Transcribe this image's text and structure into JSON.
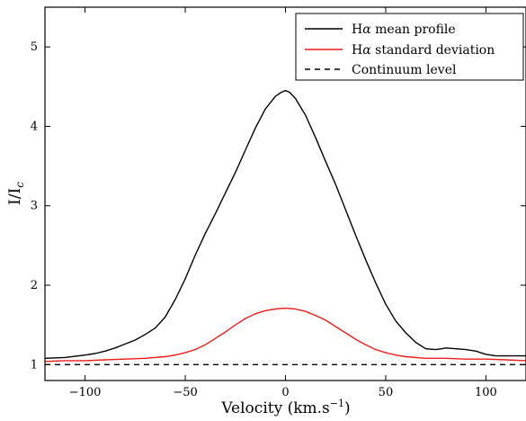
{
  "chart_data": {
    "type": "line",
    "title": "",
    "xlabel": "Velocity (km.s",
    "xlabel_sup": "−1",
    "xlabel_close": ")",
    "ylabel_main": "I/I",
    "ylabel_sub": "c",
    "xlim": [
      -120,
      120
    ],
    "ylim": [
      0.8,
      5.5
    ],
    "xticks": [
      -100,
      -50,
      0,
      50,
      100
    ],
    "xtick_labels": [
      "−100",
      "−50",
      "0",
      "50",
      "100"
    ],
    "yticks": [
      1,
      2,
      3,
      4,
      5
    ],
    "ytick_labels": [
      "1",
      "2",
      "3",
      "4",
      "5"
    ],
    "grid": false,
    "legend_position": "top-right",
    "series": [
      {
        "name_prefix": "H",
        "name_greek": "α",
        "name_suffix": " mean profile",
        "color": "#000000",
        "style": "solid",
        "x": [
          -120,
          -110,
          -100,
          -95,
          -90,
          -85,
          -80,
          -75,
          -70,
          -65,
          -60,
          -55,
          -50,
          -45,
          -40,
          -35,
          -30,
          -25,
          -20,
          -15,
          -10,
          -5,
          -2,
          0,
          2,
          5,
          10,
          15,
          20,
          25,
          30,
          35,
          40,
          45,
          50,
          55,
          60,
          65,
          70,
          75,
          78,
          80,
          85,
          90,
          95,
          100,
          105,
          110,
          115,
          120
        ],
        "y": [
          1.08,
          1.09,
          1.12,
          1.14,
          1.17,
          1.21,
          1.26,
          1.31,
          1.38,
          1.46,
          1.6,
          1.82,
          2.08,
          2.38,
          2.65,
          2.9,
          3.16,
          3.42,
          3.7,
          3.98,
          4.22,
          4.38,
          4.43,
          4.45,
          4.43,
          4.35,
          4.14,
          3.86,
          3.56,
          3.27,
          2.95,
          2.63,
          2.32,
          2.03,
          1.76,
          1.55,
          1.4,
          1.28,
          1.2,
          1.19,
          1.2,
          1.21,
          1.2,
          1.19,
          1.17,
          1.13,
          1.11,
          1.11,
          1.11,
          1.11
        ]
      },
      {
        "name_prefix": "H",
        "name_greek": "α",
        "name_suffix": " standard deviation",
        "color": "#ee1c1c",
        "style": "solid",
        "x": [
          -120,
          -110,
          -100,
          -90,
          -80,
          -70,
          -60,
          -55,
          -50,
          -45,
          -40,
          -35,
          -30,
          -25,
          -20,
          -15,
          -10,
          -5,
          0,
          5,
          10,
          15,
          20,
          25,
          30,
          35,
          40,
          45,
          50,
          55,
          60,
          70,
          80,
          90,
          100,
          110,
          120
        ],
        "y": [
          1.04,
          1.05,
          1.05,
          1.06,
          1.07,
          1.08,
          1.1,
          1.12,
          1.15,
          1.19,
          1.25,
          1.33,
          1.41,
          1.5,
          1.58,
          1.64,
          1.68,
          1.7,
          1.71,
          1.7,
          1.67,
          1.62,
          1.56,
          1.48,
          1.4,
          1.32,
          1.25,
          1.19,
          1.15,
          1.12,
          1.1,
          1.08,
          1.08,
          1.07,
          1.07,
          1.06,
          1.05
        ]
      },
      {
        "name_prefix": "",
        "name_greek": "",
        "name_suffix": "Continuum level",
        "color": "#000000",
        "style": "dashed",
        "x": [
          -120,
          120
        ],
        "y": [
          1,
          1
        ]
      }
    ]
  }
}
